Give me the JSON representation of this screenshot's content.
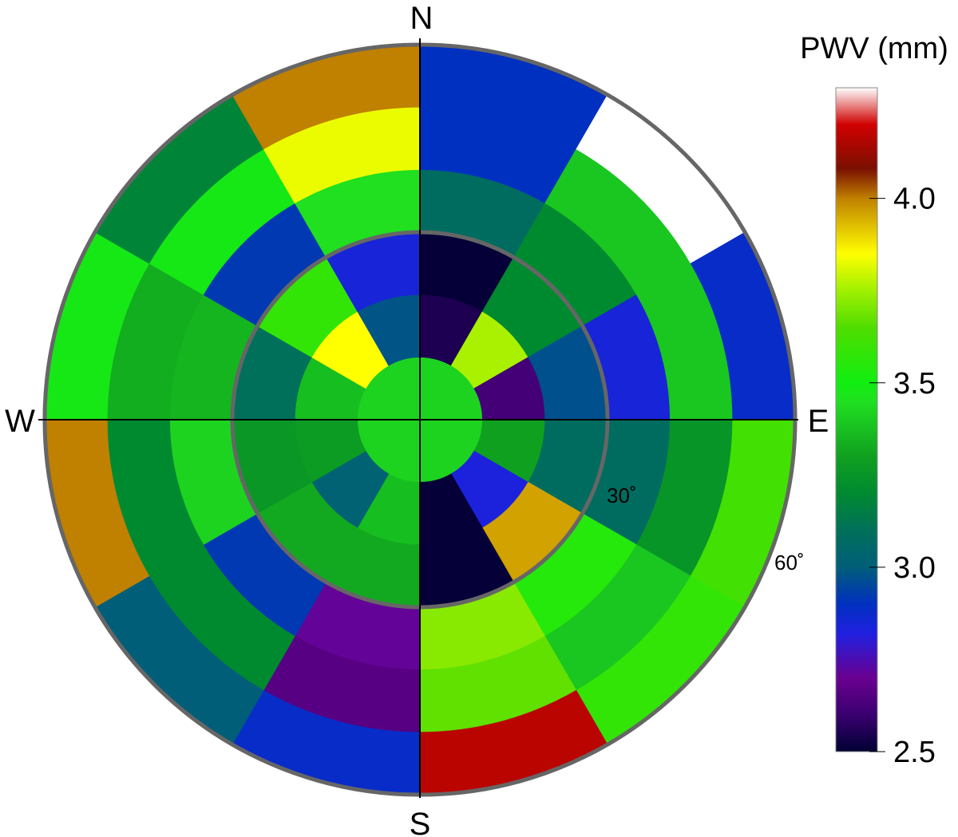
{
  "chart_data": {
    "type": "polar-heatmap",
    "title": "",
    "colorbar": {
      "label": "PWV (mm)",
      "range": [
        2.5,
        4.3
      ],
      "ticks": [
        2.5,
        3.0,
        3.5,
        4.0
      ],
      "tick_labels": [
        "2.5",
        "3.0",
        "3.5",
        "4.0"
      ],
      "colormap": [
        {
          "v": 2.5,
          "c": "#000033"
        },
        {
          "v": 2.6,
          "c": "#3a0070"
        },
        {
          "v": 2.7,
          "c": "#6a0090"
        },
        {
          "v": 2.82,
          "c": "#2020e0"
        },
        {
          "v": 2.9,
          "c": "#0030c0"
        },
        {
          "v": 3.0,
          "c": "#005e78"
        },
        {
          "v": 3.1,
          "c": "#00705a"
        },
        {
          "v": 3.2,
          "c": "#008a30"
        },
        {
          "v": 3.3,
          "c": "#10a020"
        },
        {
          "v": 3.45,
          "c": "#20e020"
        },
        {
          "v": 3.5,
          "c": "#10ee10"
        },
        {
          "v": 3.65,
          "c": "#50dd00"
        },
        {
          "v": 3.75,
          "c": "#a0f000"
        },
        {
          "v": 3.85,
          "c": "#ffff00"
        },
        {
          "v": 4.0,
          "c": "#c08000"
        },
        {
          "v": 4.08,
          "c": "#7a1000"
        },
        {
          "v": 4.2,
          "c": "#d00000"
        },
        {
          "v": 4.3,
          "c": "#ffffff"
        }
      ]
    },
    "compass": [
      "N",
      "E",
      "S",
      "W"
    ],
    "ring_labels": [
      "30˚",
      "60˚"
    ],
    "zenith_angle_edges_deg": [
      0,
      10,
      20,
      30,
      40,
      50,
      60
    ],
    "azimuth_sector_edges_deg": [
      0,
      30,
      60,
      90,
      120,
      150,
      180,
      210,
      240,
      270,
      300,
      330,
      360
    ],
    "rings": [
      {
        "zenith_range": [
          0,
          10
        ],
        "values": [
          3.42,
          3.42,
          3.42,
          3.42,
          3.42,
          3.42,
          3.42,
          3.42,
          3.42,
          3.42,
          3.42,
          3.42
        ]
      },
      {
        "zenith_range": [
          10,
          20
        ],
        "values": [
          2.55,
          3.76,
          2.62,
          3.3,
          2.83,
          2.51,
          3.37,
          3.02,
          3.28,
          3.37,
          3.85,
          2.98
        ]
      },
      {
        "zenith_range": [
          20,
          30
        ],
        "values": [
          2.51,
          3.2,
          2.97,
          3.08,
          3.96,
          2.51,
          3.32,
          3.32,
          3.26,
          3.1,
          3.58,
          2.84
        ]
      },
      {
        "zenith_range": [
          30,
          40
        ],
        "values": [
          3.08,
          3.2,
          2.84,
          3.08,
          3.55,
          3.72,
          2.71,
          2.92,
          3.42,
          3.35,
          2.92,
          3.45
        ]
      },
      {
        "zenith_range": [
          40,
          50
        ],
        "values": [
          2.9,
          3.39,
          3.39,
          3.25,
          3.39,
          3.67,
          2.66,
          3.2,
          3.2,
          3.33,
          3.48,
          3.83
        ]
      },
      {
        "zenith_range": [
          50,
          60
        ],
        "values": [
          2.9,
          4.3,
          2.88,
          3.62,
          3.58,
          4.17,
          2.88,
          3.0,
          4.0,
          3.48,
          3.18,
          4.0
        ]
      }
    ]
  }
}
